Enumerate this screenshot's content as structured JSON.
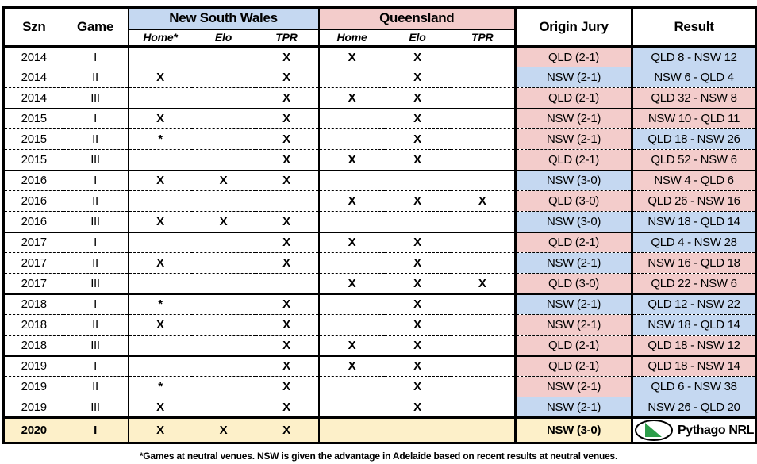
{
  "colors": {
    "blue": "#c5d8f1",
    "pink": "#f3cccb",
    "cream": "#fdf0c9",
    "green": "#2e9e4b"
  },
  "logo": {
    "text": "Pythago NRL",
    "icon": "green-triangle-ellipse-icon"
  },
  "chart_data": {
    "type": "table",
    "headers": {
      "szn": "Szn",
      "game": "Game",
      "nsw_group": "New South Wales",
      "qld_group": "Queensland",
      "nsw_sub": [
        "Home*",
        "Elo",
        "TPR"
      ],
      "qld_sub": [
        "Home",
        "Elo",
        "TPR"
      ],
      "jury": "Origin Jury",
      "result": "Result"
    },
    "rows": [
      {
        "szn": "2014",
        "game": "I",
        "nsw": [
          "",
          "",
          "X"
        ],
        "qld": [
          "X",
          "X",
          ""
        ],
        "jury": "QLD (2-1)",
        "jury_color": "pink",
        "result": "QLD 8 - NSW 12",
        "result_color": "blue"
      },
      {
        "szn": "2014",
        "game": "II",
        "nsw": [
          "X",
          "",
          "X"
        ],
        "qld": [
          "",
          "X",
          ""
        ],
        "jury": "NSW (2-1)",
        "jury_color": "blue",
        "result": "NSW 6 - QLD 4",
        "result_color": "blue"
      },
      {
        "szn": "2014",
        "game": "III",
        "nsw": [
          "",
          "",
          "X"
        ],
        "qld": [
          "X",
          "X",
          ""
        ],
        "jury": "QLD (2-1)",
        "jury_color": "pink",
        "result": "QLD 32 - NSW 8",
        "result_color": "pink"
      },
      {
        "szn": "2015",
        "game": "I",
        "nsw": [
          "X",
          "",
          "X"
        ],
        "qld": [
          "",
          "X",
          ""
        ],
        "jury": "NSW (2-1)",
        "jury_color": "pink",
        "result": "NSW 10 - QLD 11",
        "result_color": "pink"
      },
      {
        "szn": "2015",
        "game": "II",
        "nsw": [
          "*",
          "",
          "X"
        ],
        "qld": [
          "",
          "X",
          ""
        ],
        "jury": "NSW (2-1)",
        "jury_color": "pink",
        "result": "QLD 18 - NSW 26",
        "result_color": "blue"
      },
      {
        "szn": "2015",
        "game": "III",
        "nsw": [
          "",
          "",
          "X"
        ],
        "qld": [
          "X",
          "X",
          ""
        ],
        "jury": "QLD (2-1)",
        "jury_color": "pink",
        "result": "QLD 52 - NSW 6",
        "result_color": "pink"
      },
      {
        "szn": "2016",
        "game": "I",
        "nsw": [
          "X",
          "X",
          "X"
        ],
        "qld": [
          "",
          "",
          ""
        ],
        "jury": "NSW (3-0)",
        "jury_color": "blue",
        "result": "NSW 4 - QLD 6",
        "result_color": "pink"
      },
      {
        "szn": "2016",
        "game": "II",
        "nsw": [
          "",
          "",
          ""
        ],
        "qld": [
          "X",
          "X",
          "X"
        ],
        "jury": "QLD (3-0)",
        "jury_color": "pink",
        "result": "QLD 26 - NSW 16",
        "result_color": "pink"
      },
      {
        "szn": "2016",
        "game": "III",
        "nsw": [
          "X",
          "X",
          "X"
        ],
        "qld": [
          "",
          "",
          ""
        ],
        "jury": "NSW (3-0)",
        "jury_color": "blue",
        "result": "NSW 18 - QLD 14",
        "result_color": "blue"
      },
      {
        "szn": "2017",
        "game": "I",
        "nsw": [
          "",
          "",
          "X"
        ],
        "qld": [
          "X",
          "X",
          ""
        ],
        "jury": "QLD (2-1)",
        "jury_color": "pink",
        "result": "QLD 4 - NSW 28",
        "result_color": "blue"
      },
      {
        "szn": "2017",
        "game": "II",
        "nsw": [
          "X",
          "",
          "X"
        ],
        "qld": [
          "",
          "X",
          ""
        ],
        "jury": "NSW (2-1)",
        "jury_color": "blue",
        "result": "NSW 16 - QLD 18",
        "result_color": "pink"
      },
      {
        "szn": "2017",
        "game": "III",
        "nsw": [
          "",
          "",
          ""
        ],
        "qld": [
          "X",
          "X",
          "X"
        ],
        "jury": "QLD (3-0)",
        "jury_color": "pink",
        "result": "QLD 22 - NSW 6",
        "result_color": "pink"
      },
      {
        "szn": "2018",
        "game": "I",
        "nsw": [
          "*",
          "",
          "X"
        ],
        "qld": [
          "",
          "X",
          ""
        ],
        "jury": "NSW (2-1)",
        "jury_color": "blue",
        "result": "QLD 12 - NSW 22",
        "result_color": "blue"
      },
      {
        "szn": "2018",
        "game": "II",
        "nsw": [
          "X",
          "",
          "X"
        ],
        "qld": [
          "",
          "X",
          ""
        ],
        "jury": "NSW (2-1)",
        "jury_color": "pink",
        "result": "NSW 18 - QLD 14",
        "result_color": "blue"
      },
      {
        "szn": "2018",
        "game": "III",
        "nsw": [
          "",
          "",
          "X"
        ],
        "qld": [
          "X",
          "X",
          ""
        ],
        "jury": "QLD (2-1)",
        "jury_color": "pink",
        "result": "QLD 18 - NSW 12",
        "result_color": "pink"
      },
      {
        "szn": "2019",
        "game": "I",
        "nsw": [
          "",
          "",
          "X"
        ],
        "qld": [
          "X",
          "X",
          ""
        ],
        "jury": "QLD (2-1)",
        "jury_color": "pink",
        "result": "QLD 18 - NSW 14",
        "result_color": "pink"
      },
      {
        "szn": "2019",
        "game": "II",
        "nsw": [
          "*",
          "",
          "X"
        ],
        "qld": [
          "",
          "X",
          ""
        ],
        "jury": "NSW (2-1)",
        "jury_color": "pink",
        "result": "QLD 6 - NSW 38",
        "result_color": "blue"
      },
      {
        "szn": "2019",
        "game": "III",
        "nsw": [
          "X",
          "",
          "X"
        ],
        "qld": [
          "",
          "X",
          ""
        ],
        "jury": "NSW (2-1)",
        "jury_color": "blue",
        "result": "NSW 26 - QLD 20",
        "result_color": "blue"
      },
      {
        "szn": "2020",
        "game": "I",
        "nsw": [
          "X",
          "X",
          "X"
        ],
        "qld": [
          "",
          "",
          ""
        ],
        "jury": "NSW (3-0)",
        "jury_color": "cream",
        "result": "",
        "result_color": "logo",
        "final": true
      }
    ],
    "footnote": "*Games at neutral venues. NSW is given the advantage in Adelaide based on recent results at neutral venues."
  }
}
